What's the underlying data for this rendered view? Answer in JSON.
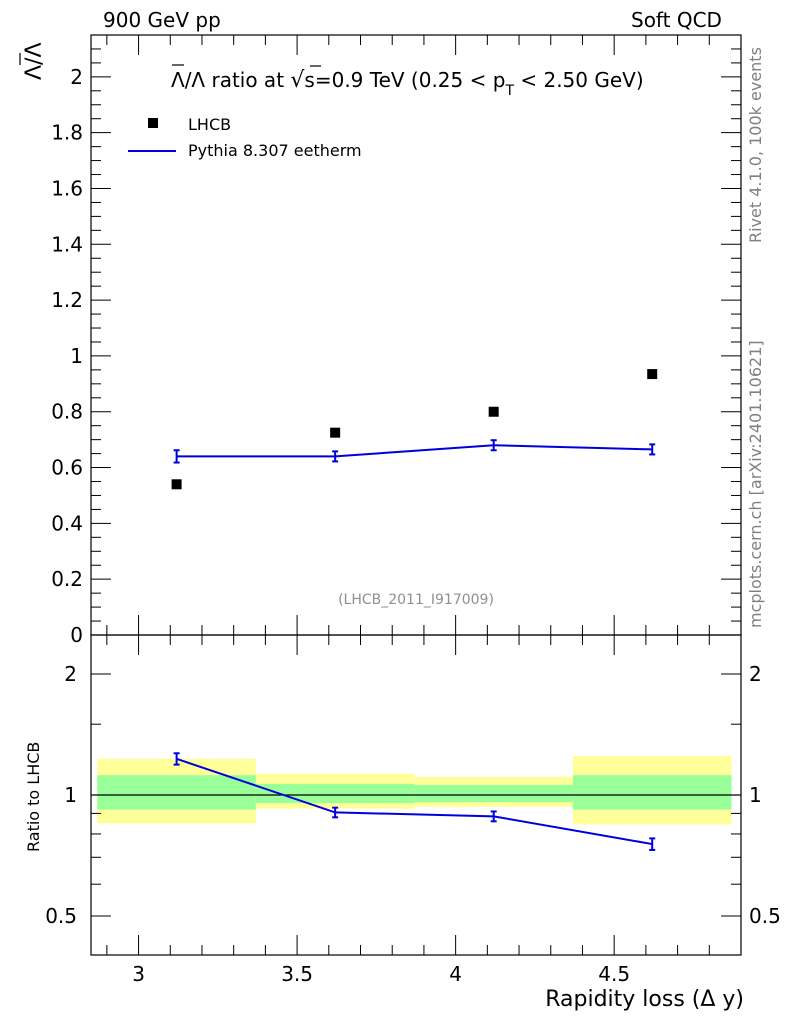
{
  "header": {
    "left": "900 GeV pp",
    "right": "Soft QCD"
  },
  "side_labels": {
    "rivet": "Rivet 4.1.0,  100k events",
    "mcplots": "mcplots.cern.ch [arXiv:2401.10621]"
  },
  "colors": {
    "mc": "#0000dd",
    "green_band": "#99ff99",
    "yellow_band": "#ffff99",
    "data": "#000000"
  },
  "chart_data": [
    {
      "type": "scatter",
      "panel": "main",
      "title": "Λ̄/Λ ratio at √s=0.9 TeV (0.25 < pT < 2.50 GeV)",
      "title_parts": {
        "prefix": "/Λ ratio at ",
        "sqrt": "√",
        "s_eq": "s=0.9 TeV (0.25 < p",
        "sub": "T",
        "suffix": " < 2.50 GeV)"
      },
      "ylabel": "Λ/Λ",
      "xlim": [
        2.85,
        4.9
      ],
      "ylim": [
        0,
        2.15
      ],
      "yticks": [
        0,
        0.2,
        0.4,
        0.6,
        0.8,
        1,
        1.2,
        1.4,
        1.6,
        1.8,
        2
      ],
      "ytick_labels": [
        "0",
        "0.2",
        "0.4",
        "0.6",
        "0.8",
        "1",
        "1.2",
        "1.4",
        "1.6",
        "1.8",
        "2"
      ],
      "watermark": "(LHCB_2011_I917009)",
      "legend": {
        "placement": "top-left",
        "data_label": "LHCB",
        "mc_label": "Pythia 8.307 eetherm"
      },
      "series": [
        {
          "name": "LHCB",
          "style": "markers",
          "x": [
            3.12,
            3.62,
            4.12,
            4.62
          ],
          "y": [
            0.54,
            0.725,
            0.8,
            0.935
          ]
        },
        {
          "name": "Pythia 8.307 eetherm",
          "style": "line",
          "x_edges": [
            3.12,
            3.62,
            4.12,
            4.62
          ],
          "x": [
            3.12,
            3.62,
            4.12,
            4.62
          ],
          "y": [
            0.64,
            0.64,
            0.68,
            0.665
          ],
          "yerr": [
            0.022,
            0.018,
            0.018,
            0.018
          ]
        }
      ]
    },
    {
      "type": "scatter",
      "panel": "ratio",
      "ylabel": "Ratio to LHCB",
      "xlabel": "Rapidity loss (Δ y)",
      "xlim": [
        2.85,
        4.9
      ],
      "ylim": [
        0.4,
        2.5
      ],
      "ylog": true,
      "yticks": [
        0.5,
        1,
        2
      ],
      "ytick_labels": [
        "0.5",
        "1",
        "2"
      ],
      "xticks": [
        3,
        3.5,
        4,
        4.5
      ],
      "xtick_labels": [
        "3",
        "3.5",
        "4",
        "4.5"
      ],
      "bands": [
        {
          "x0": 2.87,
          "x1": 3.37,
          "green": [
            0.92,
            1.12
          ],
          "yellow": [
            0.85,
            1.23
          ]
        },
        {
          "x0": 3.37,
          "x1": 3.87,
          "green": [
            0.955,
            1.065
          ],
          "yellow": [
            0.925,
            1.13
          ]
        },
        {
          "x0": 3.87,
          "x1": 4.37,
          "green": [
            0.96,
            1.06
          ],
          "yellow": [
            0.935,
            1.11
          ]
        },
        {
          "x0": 4.37,
          "x1": 4.87,
          "green": [
            0.92,
            1.12
          ],
          "yellow": [
            0.845,
            1.25
          ]
        }
      ],
      "reference": 1,
      "series": [
        {
          "name": "Pythia 8.307 eetherm",
          "x": [
            3.12,
            3.62,
            4.12,
            4.62
          ],
          "y": [
            1.23,
            0.905,
            0.885,
            0.755
          ],
          "yerr": [
            0.04,
            0.025,
            0.025,
            0.025
          ]
        }
      ]
    }
  ]
}
